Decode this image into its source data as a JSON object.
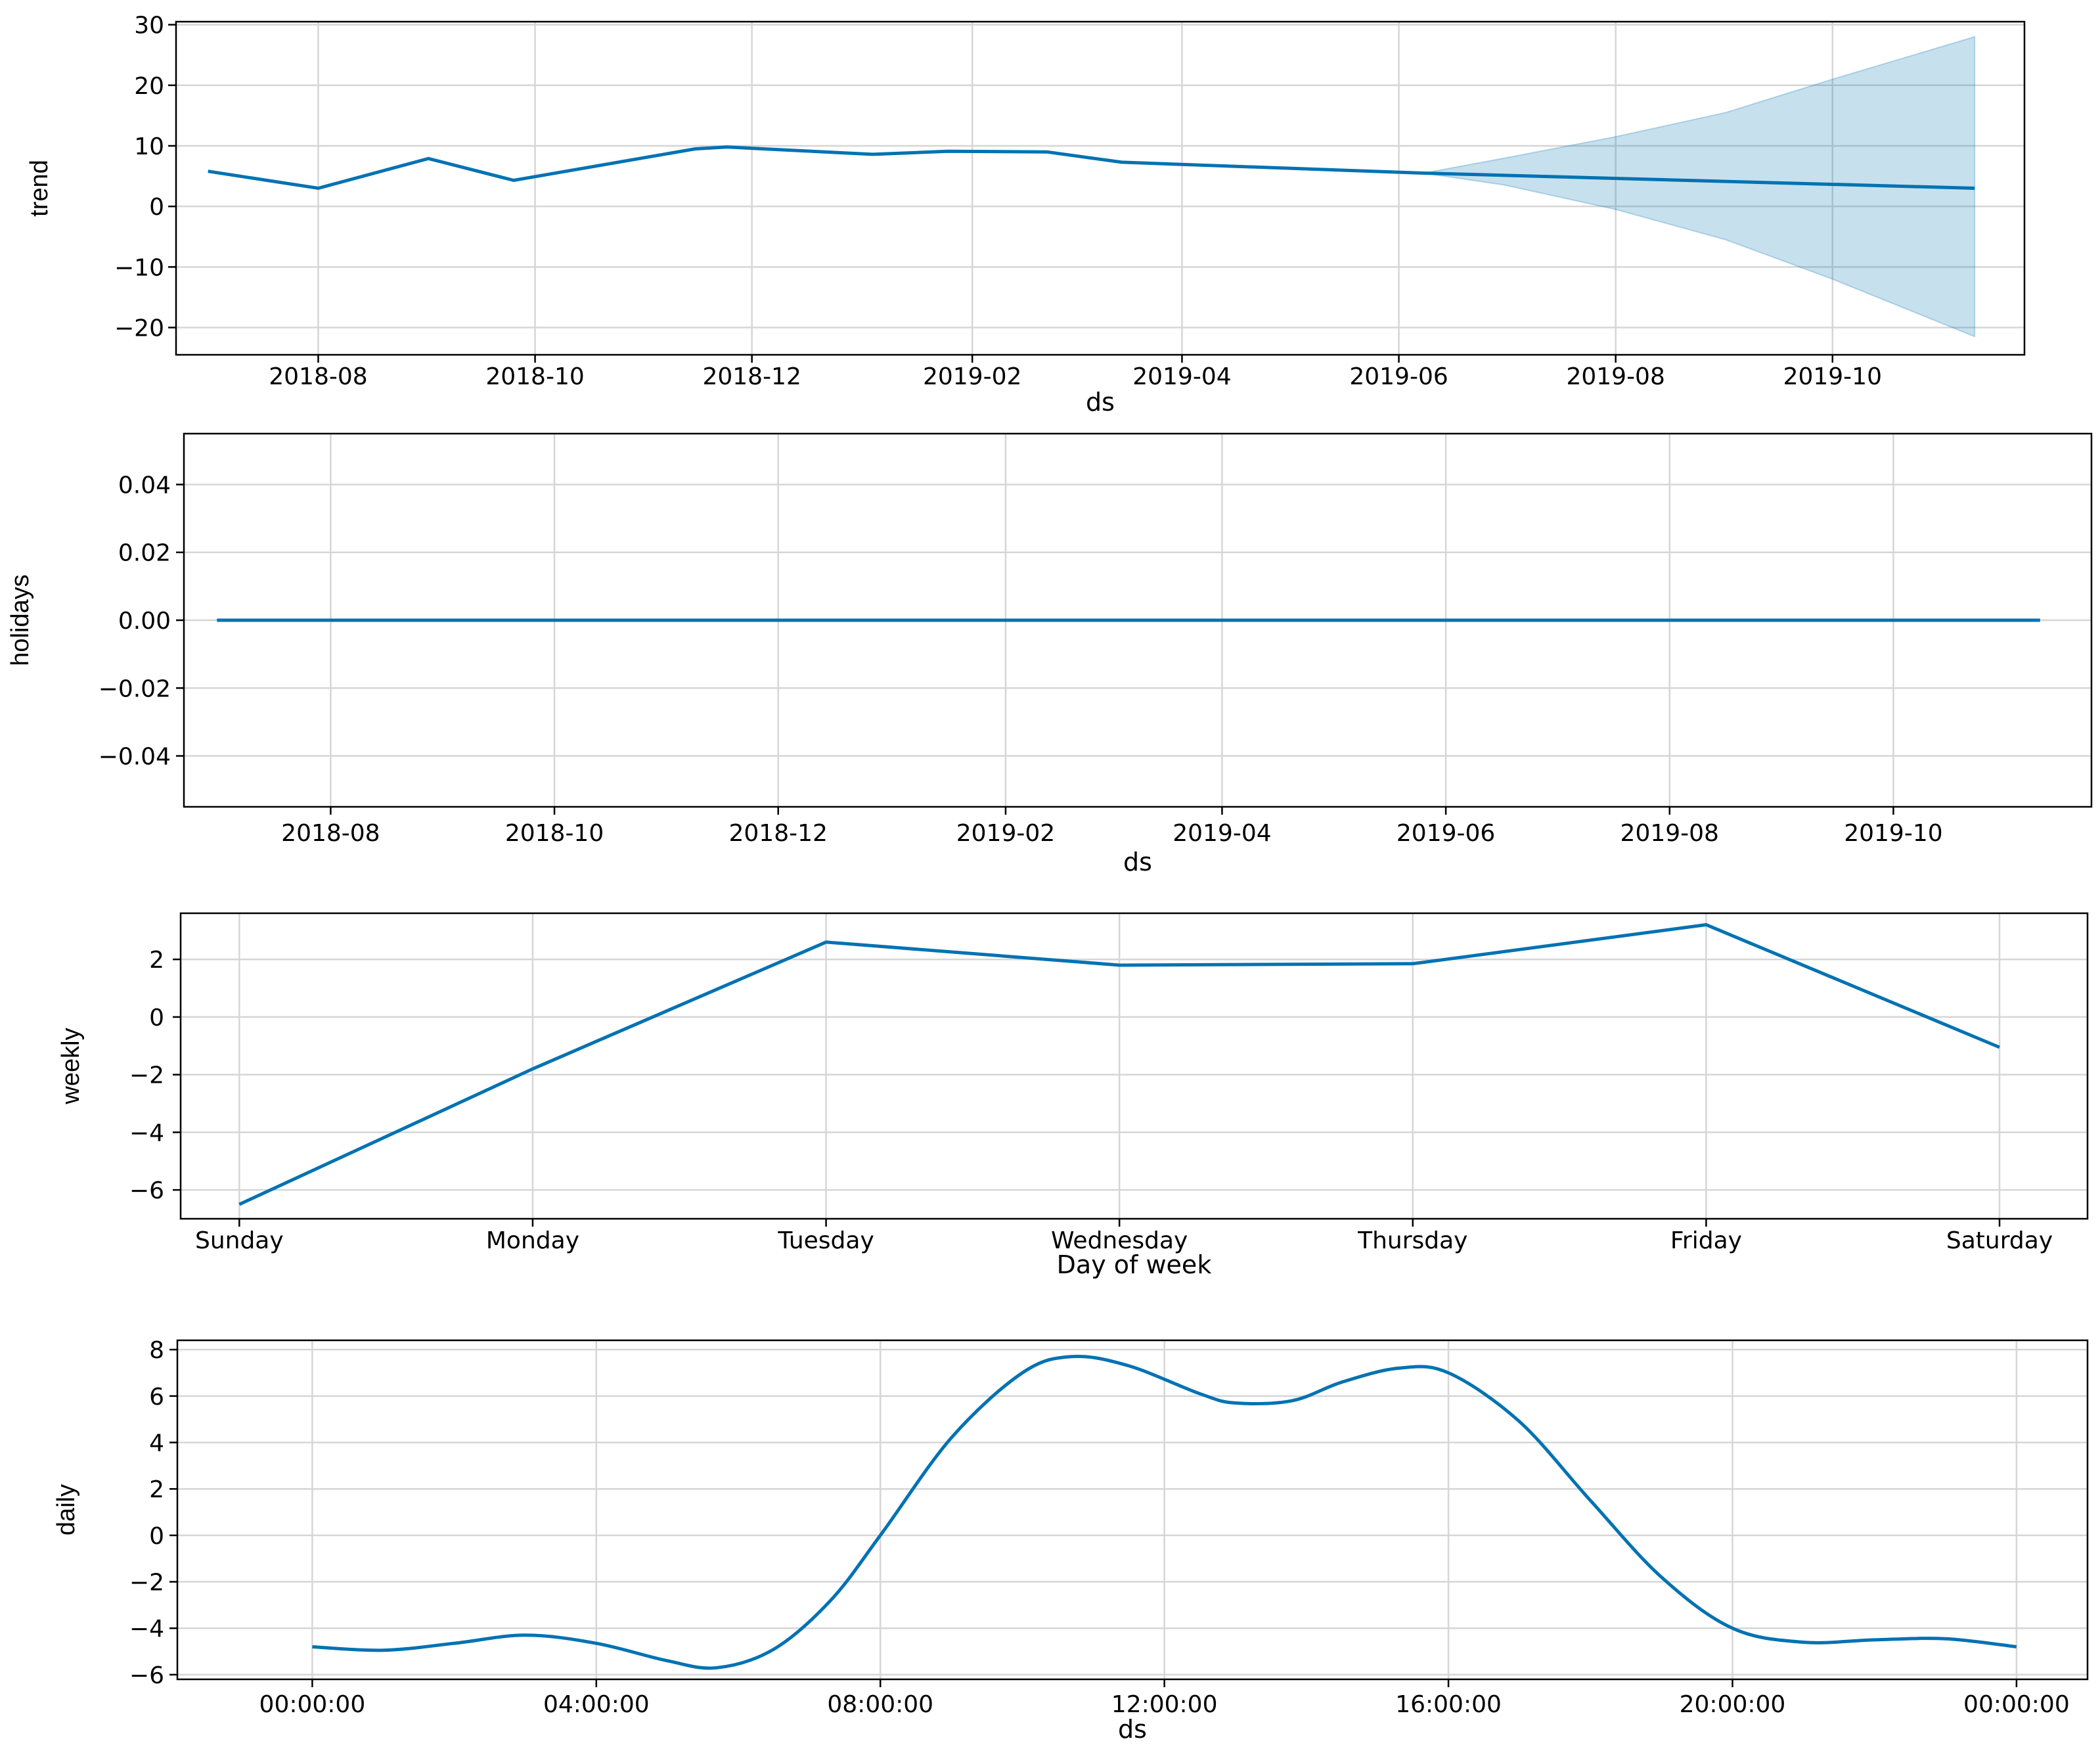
{
  "chart_data": [
    {
      "type": "line",
      "xlabel": "ds",
      "ylabel": "trend",
      "x_type": "date",
      "xlim": [
        "2018-06-22",
        "2019-11-24"
      ],
      "ylim": [
        -24.5,
        30.5
      ],
      "xticks": [
        "2018-08-01",
        "2018-10-01",
        "2018-12-01",
        "2019-02-01",
        "2019-04-01",
        "2019-06-01",
        "2019-08-01",
        "2019-10-01"
      ],
      "xtick_labels": [
        "2018-08",
        "2018-10",
        "2018-12",
        "2019-02",
        "2019-04",
        "2019-06",
        "2019-08",
        "2019-10"
      ],
      "yticks": [
        30,
        20,
        10,
        0,
        -10,
        -20
      ],
      "ytick_labels": [
        "30",
        "20",
        "10",
        "0",
        "−10",
        "−20"
      ],
      "grid": true,
      "series": [
        {
          "color": "#0072b2",
          "x": [
            "2018-07-01",
            "2018-08-01",
            "2018-09-01",
            "2018-09-25",
            "2018-11-15",
            "2018-11-24",
            "2019-01-04",
            "2019-01-25",
            "2019-02-22",
            "2019-03-15",
            "2019-06-08",
            "2019-11-10"
          ],
          "y": [
            5.8,
            3.0,
            7.9,
            4.3,
            9.5,
            9.8,
            8.6,
            9.1,
            9.0,
            7.3,
            5.5,
            3.0
          ],
          "band_color": "#0072b2",
          "band_opacity": 0.22,
          "band_x": [
            "2019-06-08",
            "2019-07-01",
            "2019-08-01",
            "2019-09-01",
            "2019-10-01",
            "2019-11-10"
          ],
          "band_upper": [
            5.5,
            8.0,
            11.5,
            15.5,
            21.0,
            28.0
          ],
          "band_lower": [
            5.5,
            3.5,
            -0.5,
            -5.5,
            -12.0,
            -21.5
          ]
        }
      ]
    },
    {
      "type": "line",
      "xlabel": "ds",
      "ylabel": "holidays",
      "x_type": "date",
      "xlim": [
        "2018-06-22",
        "2019-11-24"
      ],
      "ylim": [
        -0.055,
        0.055
      ],
      "xticks": [
        "2018-08-01",
        "2018-10-01",
        "2018-12-01",
        "2019-02-01",
        "2019-04-01",
        "2019-06-01",
        "2019-08-01",
        "2019-10-01"
      ],
      "xtick_labels": [
        "2018-08",
        "2018-10",
        "2018-12",
        "2019-02",
        "2019-04",
        "2019-06",
        "2019-08",
        "2019-10"
      ],
      "yticks": [
        0.04,
        0.02,
        0.0,
        -0.02,
        -0.04
      ],
      "ytick_labels": [
        "0.04",
        "0.02",
        "0.00",
        "−0.02",
        "−0.04"
      ],
      "grid": true,
      "series": [
        {
          "color": "#0072b2",
          "x": [
            "2018-07-01",
            "2019-11-10"
          ],
          "y": [
            0.0,
            0.0
          ]
        }
      ]
    },
    {
      "type": "line",
      "xlabel": "Day of week",
      "ylabel": "weekly",
      "x_type": "category",
      "categories": [
        "Sunday",
        "Monday",
        "Tuesday",
        "Wednesday",
        "Thursday",
        "Friday",
        "Saturday"
      ],
      "xlim": [
        -0.2,
        6.3
      ],
      "ylim": [
        -7.0,
        3.6
      ],
      "yticks": [
        2,
        0,
        -2,
        -4,
        -6
      ],
      "ytick_labels": [
        "2",
        "0",
        "−2",
        "−4",
        "−6"
      ],
      "grid": true,
      "series": [
        {
          "color": "#0072b2",
          "values": [
            -6.5,
            -1.8,
            2.6,
            1.8,
            1.85,
            3.2,
            -1.05
          ]
        }
      ]
    },
    {
      "type": "line",
      "xlabel": "ds",
      "ylabel": "daily",
      "x_type": "hours",
      "xlim": [
        -1.9,
        25.0
      ],
      "ylim": [
        -6.2,
        8.4
      ],
      "xticks": [
        0,
        4,
        8,
        12,
        16,
        20,
        24
      ],
      "xtick_labels": [
        "00:00:00",
        "04:00:00",
        "08:00:00",
        "12:00:00",
        "16:00:00",
        "20:00:00",
        "00:00:00"
      ],
      "yticks": [
        8,
        6,
        4,
        2,
        0,
        -2,
        -4,
        -6
      ],
      "ytick_labels": [
        "8",
        "6",
        "4",
        "2",
        "0",
        "−2",
        "−4",
        "−6"
      ],
      "grid": true,
      "series": [
        {
          "color": "#0072b2",
          "smooth": true,
          "x": [
            0,
            1,
            2,
            3,
            4,
            5,
            5.7,
            6.5,
            7.3,
            8.0,
            9.0,
            10.0,
            10.7,
            11.5,
            12.5,
            13.0,
            13.8,
            14.5,
            15.3,
            16.0,
            17.0,
            18.0,
            19.0,
            20.0,
            21.0,
            22.0,
            23.0,
            24.0
          ],
          "y": [
            -4.8,
            -4.95,
            -4.65,
            -4.3,
            -4.65,
            -5.4,
            -5.7,
            -4.9,
            -2.8,
            0.0,
            4.2,
            7.0,
            7.7,
            7.3,
            6.1,
            5.7,
            5.8,
            6.6,
            7.2,
            7.0,
            4.9,
            1.5,
            -1.8,
            -4.0,
            -4.6,
            -4.5,
            -4.45,
            -4.8
          ]
        }
      ]
    }
  ]
}
